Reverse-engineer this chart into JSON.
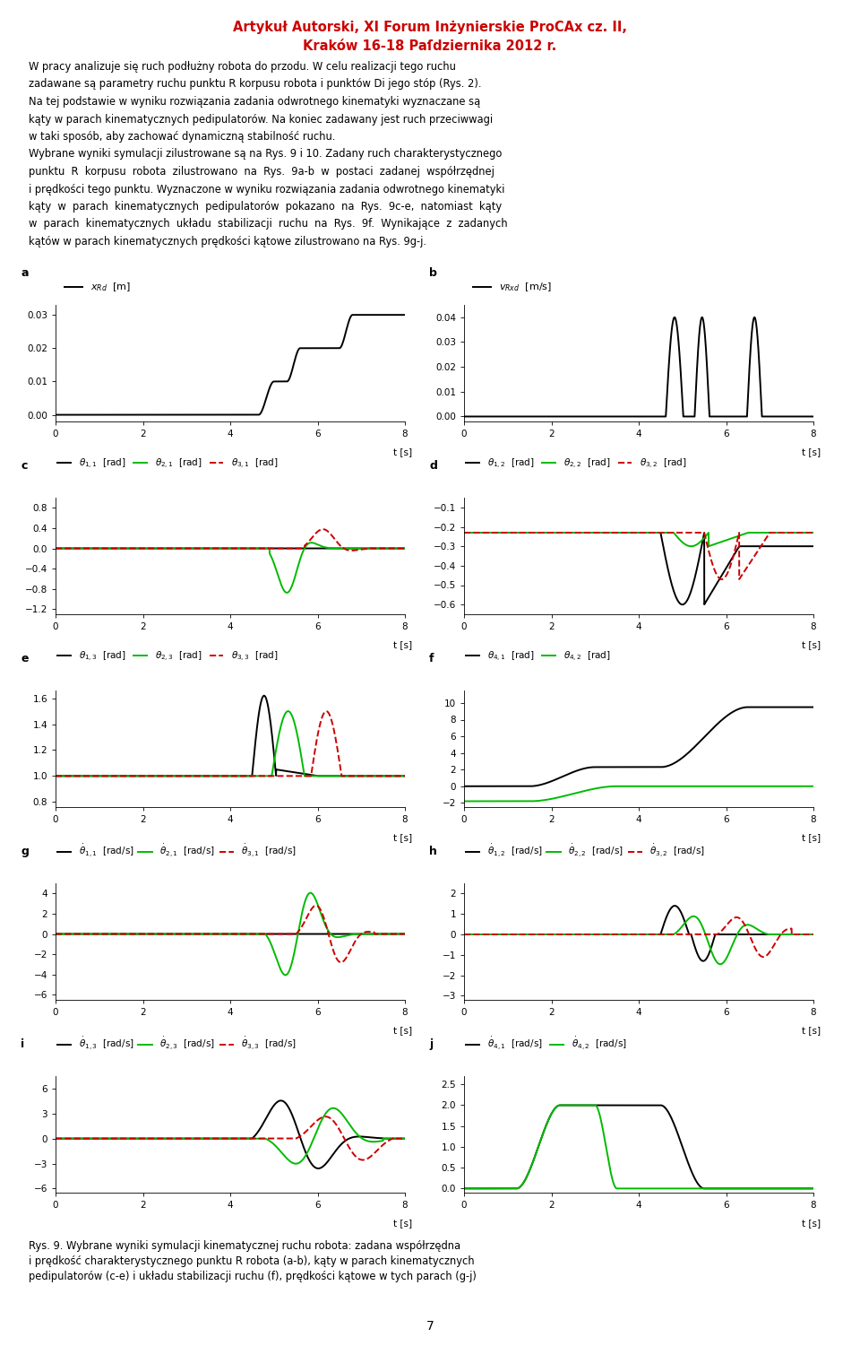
{
  "title_line1": "Artykuł Autorski, XI Forum Inżynierskie ProCAx cz. II,",
  "title_line2": "Kraków 16-18 Paſdziernika 2012 r.",
  "title_color": "#cc0000",
  "body_lines": [
    "W pracy analizuje się ruch podłużny robota do przodu. W celu realizacji tego ruchu",
    "zadawane są parametry ruchu punktu R korpusu robota i punktów Di jego stóp (Rys. 2).",
    "Na tej podstawie w wyniku rozwiązania zadania odwrotnego kinematyki wyznaczane są",
    "kąty w parach kinematycznych pedipulatorów. Na koniec zadawany jest ruch przeciwwagi",
    "w taki sposób, aby zachować dynamiczną stabilność ruchu.",
    "Wybrane wyniki symulacji zilustrowane są na Rys. 9 i 10. Zadany ruch charakterystycznego",
    "punktu  R  korpusu  robota  zilustrowano  na  Rys.  9a-b  w  postaci  zadanej  współrzędnej",
    "i prędkości tego punktu. Wyznaczone w wyniku rozwiązania zadania odwrotnego kinematyki",
    "kąty  w  parach  kinematycznych  pedipulatorów  pokazano  na  Rys.  9c-e,  natomiast  kąty",
    "w  parach  kinematycznych  układu  stabilizacji  ruchu  na  Rys.  9f.  Wynikające  z  zadanych",
    "kątów w parach kinematycznych prędkości kątowe zilustrowano na Rys. 9g-j."
  ],
  "caption_lines": [
    "Rys. 9. Wybrane wyniki symulacji kinematycznej ruchu robota: zadana współrzędna",
    "i prędkość charakterystycznego punktu R robota (a-b), kąty w parach kinematycznych",
    "pedipulatorów (c-e) i układu stabilizacji ruchu (f), prędkości kątowe w tych parach (g-j)"
  ],
  "page_number": "7",
  "black": "#000000",
  "green": "#00bb00",
  "red": "#cc0000"
}
